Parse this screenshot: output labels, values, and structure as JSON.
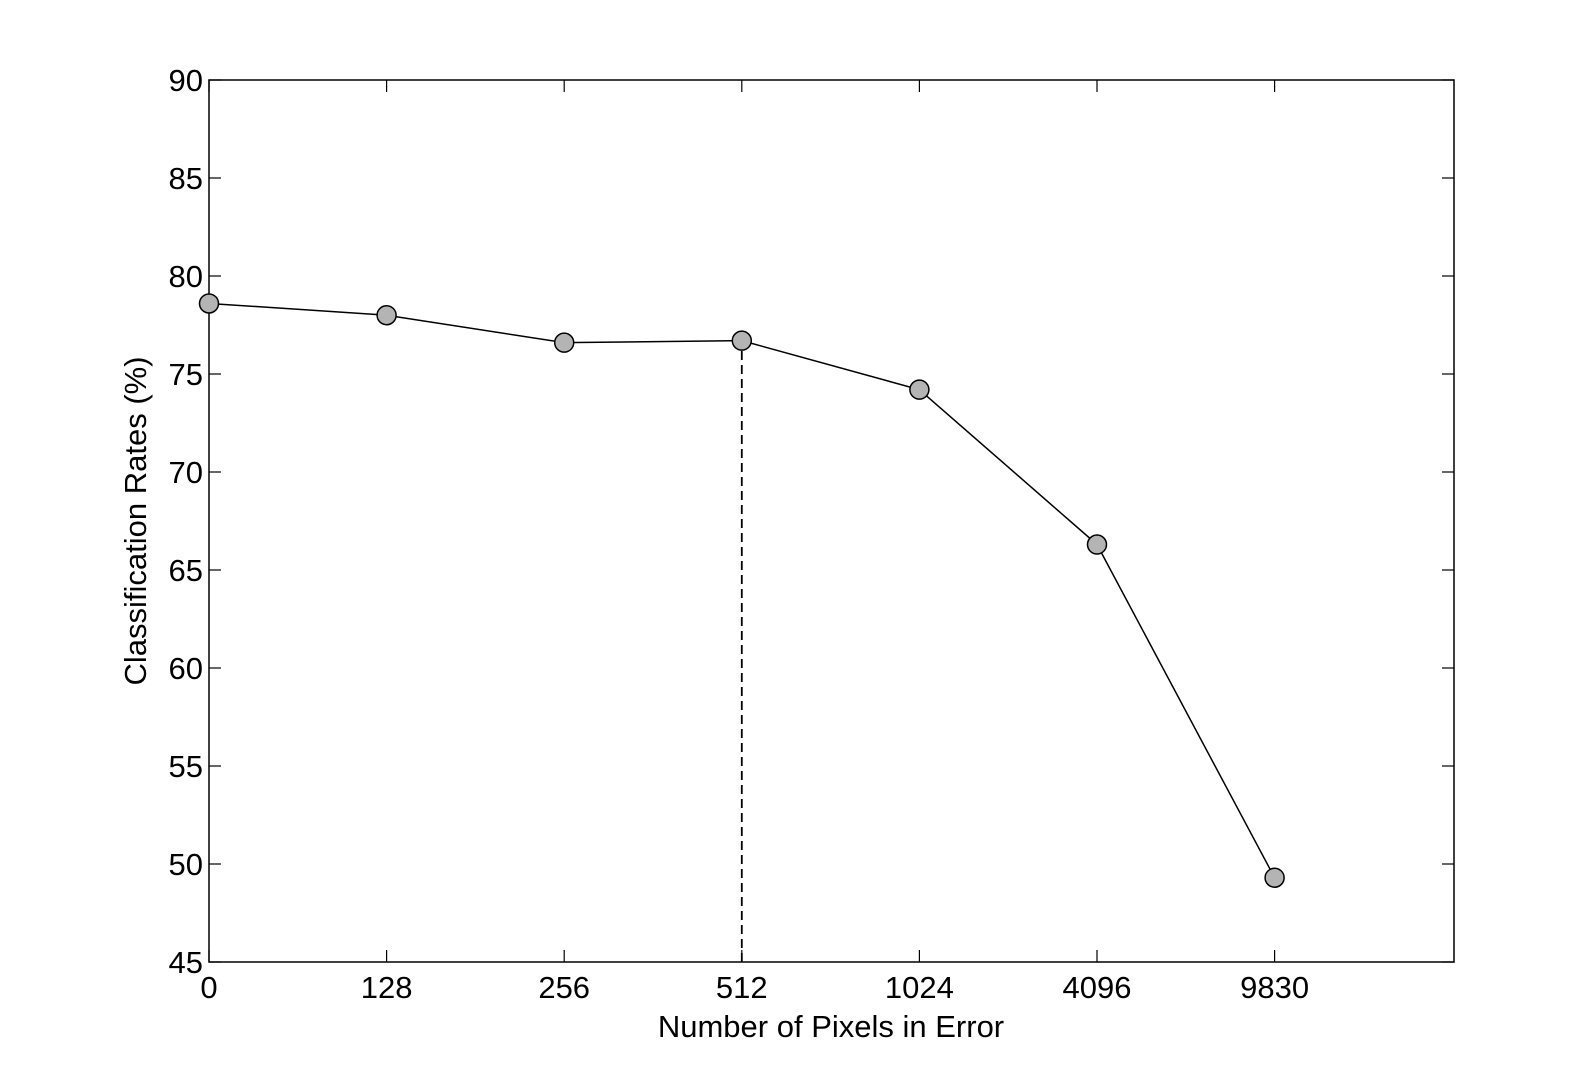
{
  "chart_data": {
    "type": "line",
    "title": "",
    "xlabel": "Number of Pixels in Error",
    "ylabel": "Classification Rates (%)",
    "categories": [
      "0",
      "128",
      "256",
      "512",
      "1024",
      "4096",
      "9830"
    ],
    "series": [
      {
        "values": [
          78.6,
          78.0,
          76.6,
          76.7,
          74.2,
          66.3,
          49.3
        ]
      }
    ],
    "ylim": [
      45,
      90
    ],
    "yticks": [
      45,
      50,
      55,
      60,
      65,
      70,
      75,
      80,
      85,
      90
    ],
    "grid": false,
    "legend": "none",
    "annotations": [
      {
        "kind": "dashed-vertical-line",
        "at_category": "512",
        "from_y": 45,
        "to_y": 76.7
      }
    ],
    "colors": {
      "marker_fill": "#b4b4b4",
      "line": "#000000"
    }
  }
}
